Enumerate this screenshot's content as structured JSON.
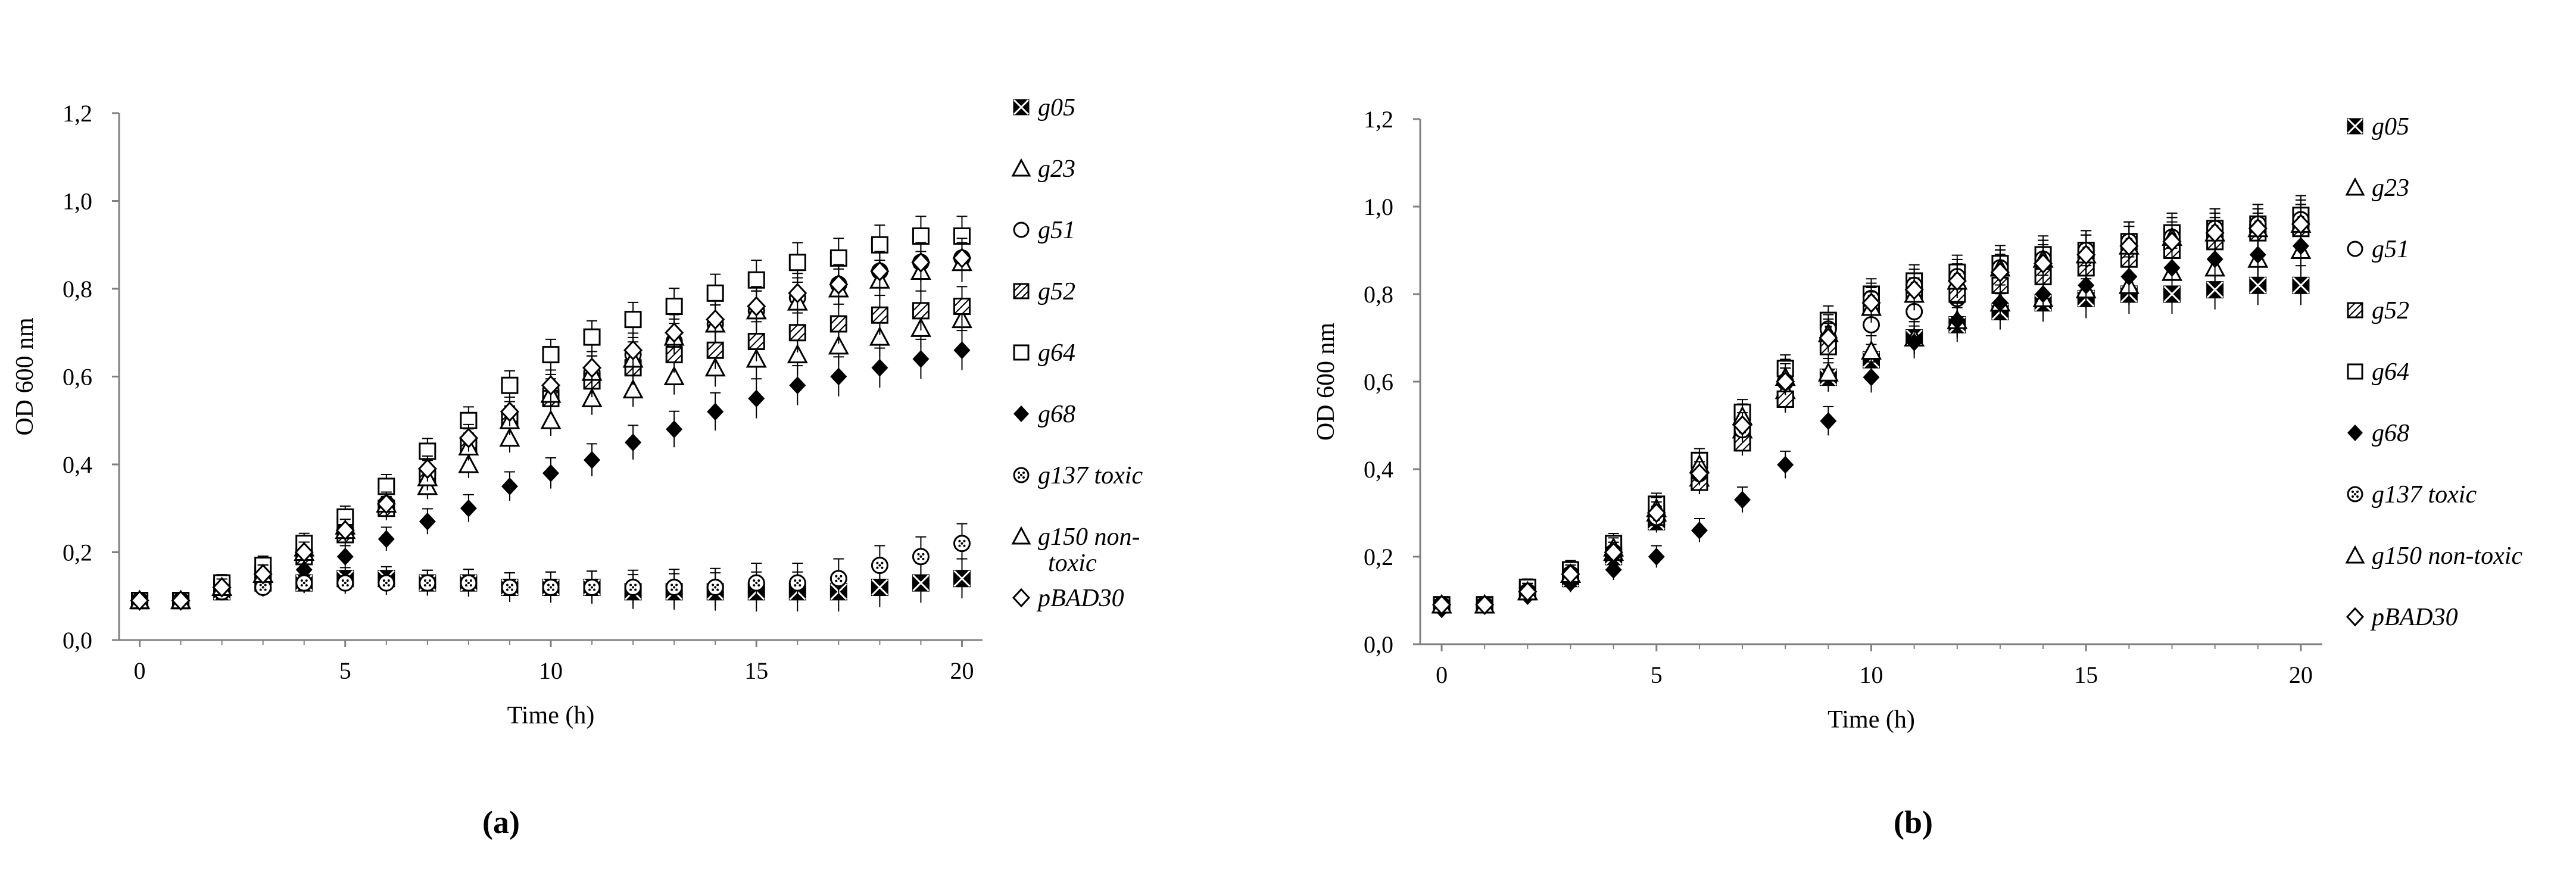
{
  "chart_data": [
    {
      "type": "scatter",
      "panel_label": "(a)",
      "xlabel": "Time (h)",
      "ylabel": "OD 600 nm",
      "xlim": [
        -0.5,
        20.5
      ],
      "ylim": [
        0.0,
        1.2
      ],
      "x_ticks": [
        "0",
        "5",
        "10",
        "15",
        "20"
      ],
      "y_ticks": [
        "0,0",
        "0,2",
        "0,4",
        "0,6",
        "0,8",
        "1,0",
        "1,2"
      ],
      "grid": false,
      "legend_position": "right",
      "x": [
        0,
        1,
        2,
        3,
        4,
        5,
        6,
        7,
        8,
        9,
        10,
        11,
        12,
        13,
        14,
        15,
        16,
        17,
        18,
        19,
        20
      ],
      "series": [
        {
          "name": "g05",
          "marker": "boxx",
          "values": [
            0.09,
            0.09,
            0.11,
            0.13,
            0.13,
            0.14,
            0.14,
            0.13,
            0.13,
            0.12,
            0.12,
            0.12,
            0.11,
            0.11,
            0.11,
            0.11,
            0.11,
            0.11,
            0.12,
            0.13,
            0.14
          ]
        },
        {
          "name": "g23",
          "marker": "tri",
          "values": [
            0.09,
            0.09,
            0.12,
            0.15,
            0.21,
            0.26,
            0.31,
            0.35,
            0.4,
            0.46,
            0.5,
            0.55,
            0.57,
            0.6,
            0.62,
            0.64,
            0.65,
            0.67,
            0.69,
            0.71,
            0.73
          ]
        },
        {
          "name": "g51",
          "marker": "circle",
          "values": [
            0.09,
            0.09,
            0.12,
            0.15,
            0.2,
            0.25,
            0.31,
            0.38,
            0.45,
            0.51,
            0.57,
            0.61,
            0.65,
            0.68,
            0.72,
            0.75,
            0.78,
            0.81,
            0.84,
            0.86,
            0.87
          ]
        },
        {
          "name": "g52",
          "marker": "boxslash",
          "values": [
            0.09,
            0.09,
            0.12,
            0.15,
            0.19,
            0.24,
            0.3,
            0.37,
            0.44,
            0.5,
            0.55,
            0.59,
            0.62,
            0.65,
            0.66,
            0.68,
            0.7,
            0.72,
            0.74,
            0.75,
            0.76
          ]
        },
        {
          "name": "g64",
          "marker": "square",
          "values": [
            0.09,
            0.09,
            0.13,
            0.17,
            0.22,
            0.28,
            0.35,
            0.43,
            0.5,
            0.58,
            0.65,
            0.69,
            0.73,
            0.76,
            0.79,
            0.82,
            0.86,
            0.87,
            0.9,
            0.92,
            0.92
          ]
        },
        {
          "name": "g68",
          "marker": "diamond",
          "values": [
            0.09,
            0.09,
            0.11,
            0.13,
            0.16,
            0.19,
            0.23,
            0.27,
            0.3,
            0.35,
            0.38,
            0.41,
            0.45,
            0.48,
            0.52,
            0.55,
            0.58,
            0.6,
            0.62,
            0.64,
            0.66
          ]
        },
        {
          "name": "g137 toxic",
          "marker": "dotcircle",
          "values": [
            0.09,
            0.09,
            0.11,
            0.12,
            0.13,
            0.13,
            0.13,
            0.13,
            0.13,
            0.12,
            0.12,
            0.12,
            0.12,
            0.12,
            0.12,
            0.13,
            0.13,
            0.14,
            0.17,
            0.19,
            0.22
          ]
        },
        {
          "name": "g150 non-toxic",
          "marker": "tri",
          "values": [
            0.09,
            0.09,
            0.12,
            0.15,
            0.2,
            0.25,
            0.31,
            0.37,
            0.44,
            0.5,
            0.56,
            0.61,
            0.64,
            0.69,
            0.72,
            0.75,
            0.77,
            0.8,
            0.82,
            0.84,
            0.86
          ]
        },
        {
          "name": "pBAD30",
          "marker": "diamondopen",
          "values": [
            0.09,
            0.09,
            0.12,
            0.15,
            0.2,
            0.25,
            0.31,
            0.39,
            0.46,
            0.52,
            0.58,
            0.62,
            0.66,
            0.7,
            0.73,
            0.76,
            0.79,
            0.81,
            0.84,
            0.86,
            0.87
          ]
        }
      ]
    },
    {
      "type": "scatter",
      "panel_label": "(b)",
      "xlabel": "Time (h)",
      "ylabel": "OD 600 nm",
      "xlim": [
        -0.5,
        20.5
      ],
      "ylim": [
        0.0,
        1.2
      ],
      "x_ticks": [
        "0",
        "5",
        "10",
        "15",
        "20"
      ],
      "y_ticks": [
        "0,0",
        "0,2",
        "0,4",
        "0,6",
        "0,8",
        "1,0",
        "1,2"
      ],
      "grid": false,
      "legend_position": "right",
      "x": [
        0,
        1,
        2,
        3,
        4,
        5,
        6,
        7,
        8,
        9,
        10,
        11,
        12,
        13,
        14,
        15,
        16,
        17,
        18,
        19,
        20
      ],
      "series": [
        {
          "name": "g05",
          "marker": "boxx",
          "values": [
            0.09,
            0.09,
            0.12,
            0.15,
            0.2,
            0.28,
            0.37,
            0.48,
            0.56,
            0.61,
            0.65,
            0.7,
            0.73,
            0.76,
            0.78,
            0.79,
            0.8,
            0.8,
            0.81,
            0.82,
            0.82
          ]
        },
        {
          "name": "g23",
          "marker": "tri",
          "values": [
            0.09,
            0.09,
            0.12,
            0.16,
            0.21,
            0.3,
            0.38,
            0.49,
            0.58,
            0.62,
            0.67,
            0.7,
            0.74,
            0.78,
            0.79,
            0.81,
            0.82,
            0.85,
            0.86,
            0.88,
            0.9
          ]
        },
        {
          "name": "g51",
          "marker": "circle",
          "values": [
            0.09,
            0.09,
            0.13,
            0.17,
            0.22,
            0.31,
            0.41,
            0.52,
            0.62,
            0.7,
            0.73,
            0.76,
            0.79,
            0.82,
            0.85,
            0.87,
            0.89,
            0.91,
            0.93,
            0.95,
            0.96
          ]
        },
        {
          "name": "g52",
          "marker": "boxslash",
          "values": [
            0.09,
            0.09,
            0.13,
            0.16,
            0.21,
            0.29,
            0.37,
            0.46,
            0.56,
            0.68,
            0.77,
            0.8,
            0.8,
            0.82,
            0.84,
            0.86,
            0.88,
            0.9,
            0.92,
            0.94,
            0.95
          ]
        },
        {
          "name": "g64",
          "marker": "square",
          "values": [
            0.09,
            0.09,
            0.13,
            0.17,
            0.23,
            0.32,
            0.42,
            0.53,
            0.63,
            0.74,
            0.8,
            0.83,
            0.85,
            0.87,
            0.89,
            0.9,
            0.92,
            0.94,
            0.95,
            0.96,
            0.98
          ]
        },
        {
          "name": "g68",
          "marker": "diamond",
          "values": [
            0.08,
            0.09,
            0.11,
            0.14,
            0.17,
            0.2,
            0.26,
            0.33,
            0.41,
            0.51,
            0.61,
            0.69,
            0.74,
            0.78,
            0.8,
            0.82,
            0.84,
            0.86,
            0.88,
            0.89,
            0.91
          ]
        },
        {
          "name": "g137 toxic",
          "marker": "dotcircle",
          "values": [
            0.09,
            0.09,
            0.12,
            0.16,
            0.21,
            0.29,
            0.39,
            0.49,
            0.6,
            0.72,
            0.79,
            0.82,
            0.84,
            0.86,
            0.88,
            0.9,
            0.92,
            0.93,
            0.95,
            0.96,
            0.97
          ]
        },
        {
          "name": "g150 non-toxic",
          "marker": "tri",
          "values": [
            0.09,
            0.09,
            0.12,
            0.16,
            0.22,
            0.31,
            0.41,
            0.52,
            0.61,
            0.71,
            0.77,
            0.8,
            0.83,
            0.86,
            0.88,
            0.89,
            0.91,
            0.93,
            0.94,
            0.95,
            0.96
          ]
        },
        {
          "name": "pBAD30",
          "marker": "diamondopen",
          "values": [
            0.09,
            0.09,
            0.12,
            0.16,
            0.21,
            0.3,
            0.39,
            0.5,
            0.6,
            0.7,
            0.78,
            0.81,
            0.83,
            0.85,
            0.87,
            0.89,
            0.91,
            0.92,
            0.94,
            0.95,
            0.96
          ]
        }
      ]
    }
  ]
}
